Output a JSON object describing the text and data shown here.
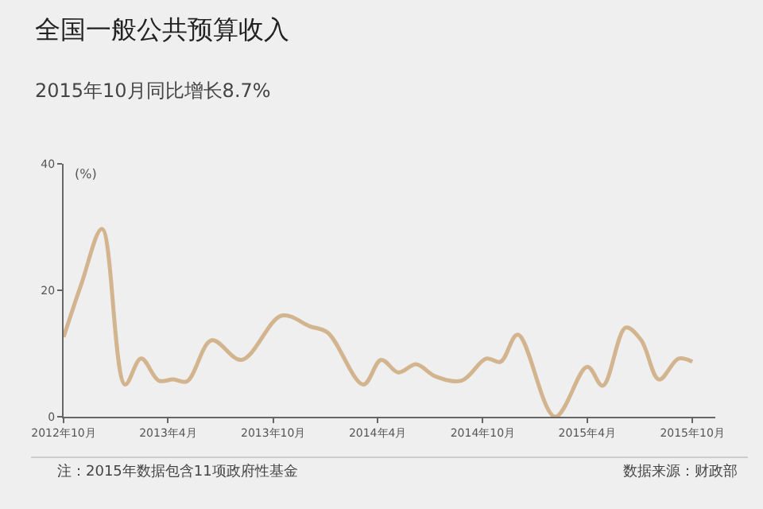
{
  "chart_data": {
    "type": "line",
    "title": "全国一般公共预算收入",
    "subtitle": "2015年10月同比增长8.7%",
    "ylabel": "(%)",
    "x": [
      "2012-10-01",
      "2012-11-01",
      "2012-12-07",
      "2013-01-16",
      "2013-02-13",
      "2013-03-16",
      "2013-04-10",
      "2013-05-04",
      "2013-06-16",
      "2013-08-07",
      "2013-10-16",
      "2013-12-04",
      "2014-01-04",
      "2014-03-07",
      "2014-04-07",
      "2014-05-07",
      "2014-06-07",
      "2014-07-10",
      "2014-08-25",
      "2014-10-07",
      "2014-11-01",
      "2014-12-01",
      "2015-02-04",
      "2015-04-01",
      "2015-04-28",
      "2015-06-07",
      "2015-07-04",
      "2015-08-04",
      "2015-09-07",
      "2015-10-01"
    ],
    "series": [
      {
        "color": "#d2b48f",
        "values": [
          12.6,
          21,
          29.7,
          5.1,
          9.2,
          5.7,
          5.9,
          5.6,
          12.1,
          9.0,
          16,
          14.3,
          13.3,
          5.1,
          9.0,
          7,
          8.3,
          6.4,
          5.7,
          9.2,
          8.7,
          13,
          0,
          7.9,
          4.9,
          14.1,
          12.1,
          5.9,
          9.2,
          8.7
        ]
      }
    ],
    "ylim": [
      0,
      40
    ],
    "yticks": [
      0,
      20,
      40
    ],
    "xlim": [
      "2012-10-01",
      "2015-11-10"
    ],
    "xticks": [
      {
        "value": "2012-10-01",
        "label": "2012年10月"
      },
      {
        "value": "2013-04-01",
        "label": "2013年4月"
      },
      {
        "value": "2013-10-01",
        "label": "2013年10月"
      },
      {
        "value": "2014-04-01",
        "label": "2014年4月"
      },
      {
        "value": "2014-10-01",
        "label": "2014年10月"
      },
      {
        "value": "2015-04-01",
        "label": "2015年4月"
      },
      {
        "value": "2015-10-01",
        "label": "2015年10月"
      }
    ],
    "grid": false,
    "annotations": [
      "注：2015年数据包含11项政府性基金",
      "数据来源：财政部"
    ]
  }
}
